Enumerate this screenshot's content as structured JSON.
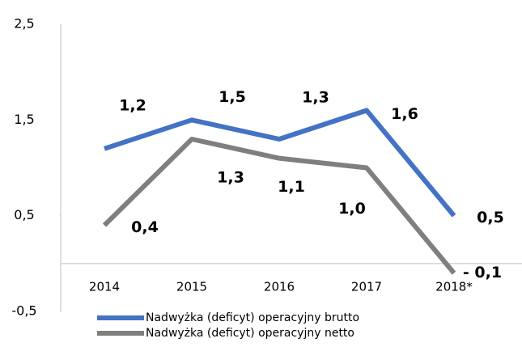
{
  "chart_data": {
    "type": "line",
    "categories": [
      "2014",
      "2015",
      "2016",
      "2017",
      "2018*"
    ],
    "series": [
      {
        "name": "Nadwyżka (deficyt) operacyjny brutto",
        "color": "#4472c4",
        "values": [
          1.2,
          1.5,
          1.3,
          1.6,
          0.5
        ],
        "value_labels": [
          "1,2",
          "1,5",
          "1,3",
          "1,6",
          "0,5"
        ]
      },
      {
        "name": "Nadwyżka (deficyt) operacyjny netto",
        "color": "#7f7f7f",
        "values": [
          0.4,
          1.3,
          1.1,
          1.0,
          -0.1
        ],
        "value_labels": [
          "0,4",
          "1,3",
          "1,1",
          "1,0",
          "- 0,1"
        ]
      }
    ],
    "ylim": [
      -0.5,
      2.5
    ],
    "yticks": [
      {
        "value": -0.5,
        "label": "-0,5"
      },
      {
        "value": 0.5,
        "label": "0,5"
      },
      {
        "value": 1.5,
        "label": "1,5"
      },
      {
        "value": 2.5,
        "label": "2,5"
      }
    ],
    "legend": "bottom"
  }
}
